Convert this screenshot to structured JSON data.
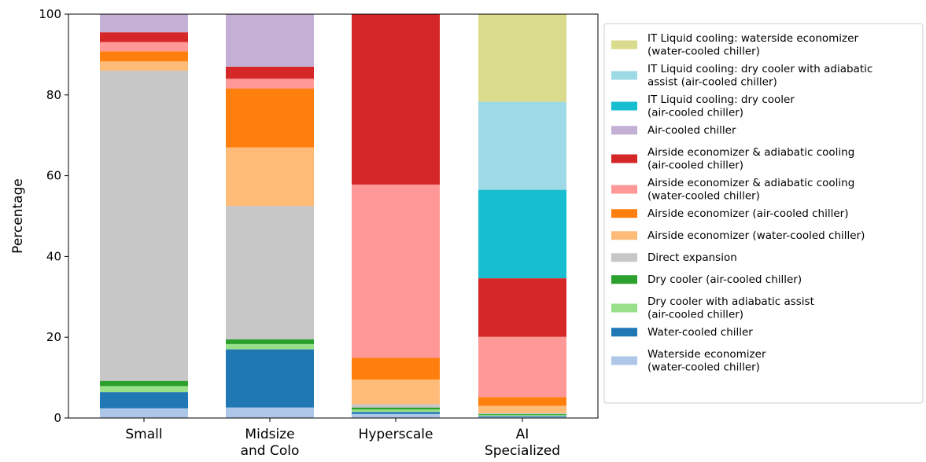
{
  "chart_data": {
    "type": "bar",
    "stacked": true,
    "title": "",
    "xlabel": "",
    "ylabel": "Percentage",
    "ylim": [
      0,
      100
    ],
    "yticks": [
      0,
      20,
      40,
      60,
      80,
      100
    ],
    "grid": false,
    "legend_position": "right",
    "categories": [
      [
        "Small"
      ],
      [
        "Midsize",
        "and Colo"
      ],
      [
        "Hyperscale"
      ],
      [
        "AI",
        "Specialized"
      ]
    ],
    "series": [
      {
        "name": [
          "Waterside economizer",
          "(water-cooled chiller)"
        ],
        "color": "#aec7e8",
        "values": [
          2.4,
          2.6,
          1.0,
          0.3
        ]
      },
      {
        "name": [
          "Water-cooled chiller"
        ],
        "color": "#1f77b4",
        "values": [
          4.0,
          14.4,
          0.5,
          0.2
        ]
      },
      {
        "name": [
          "Dry cooler with adiabatic assist",
          "(air-cooled chiller)"
        ],
        "color": "#98df8a",
        "values": [
          1.5,
          1.3,
          0.6,
          0.3
        ]
      },
      {
        "name": [
          "Dry cooler (air-cooled chiller)"
        ],
        "color": "#2ca02c",
        "values": [
          1.3,
          1.2,
          0.5,
          0.2
        ]
      },
      {
        "name": [
          "Direct expansion"
        ],
        "color": "#c7c7c7",
        "values": [
          76.8,
          33.0,
          0.8,
          0.2
        ]
      },
      {
        "name": [
          "Airside economizer (water-cooled chiller)"
        ],
        "color": "#ffbb78",
        "values": [
          2.3,
          14.5,
          6.1,
          1.8
        ]
      },
      {
        "name": [
          "Airside economizer (air-cooled chiller)"
        ],
        "color": "#ff7f0e",
        "values": [
          2.5,
          14.6,
          5.4,
          2.2
        ]
      },
      {
        "name": [
          "Airside economizer & adiabatic cooling",
          "(water-cooled chiller)"
        ],
        "color": "#ff9896",
        "values": [
          2.3,
          2.4,
          42.9,
          14.9
        ]
      },
      {
        "name": [
          "Airside economizer & adiabatic cooling",
          "(air-cooled chiller)"
        ],
        "color": "#d62728",
        "values": [
          2.4,
          3.0,
          42.2,
          14.5
        ]
      },
      {
        "name": [
          "Air-cooled chiller"
        ],
        "color": "#c5b0d5",
        "values": [
          4.5,
          13.0,
          0,
          0
        ]
      },
      {
        "name": [
          "IT Liquid cooling: dry cooler",
          "(air-cooled chiller)"
        ],
        "color": "#17becf",
        "values": [
          0,
          0,
          0,
          21.9
        ]
      },
      {
        "name": [
          "IT Liquid cooling: dry cooler with adiabatic",
          "assist (air-cooled chiller)"
        ],
        "color": "#9edae5",
        "values": [
          0,
          0,
          0,
          21.8
        ]
      },
      {
        "name": [
          "IT Liquid cooling: waterside economizer",
          "(water-cooled chiller)"
        ],
        "color": "#dbdb8d",
        "values": [
          0,
          0,
          0,
          21.7
        ]
      }
    ]
  }
}
